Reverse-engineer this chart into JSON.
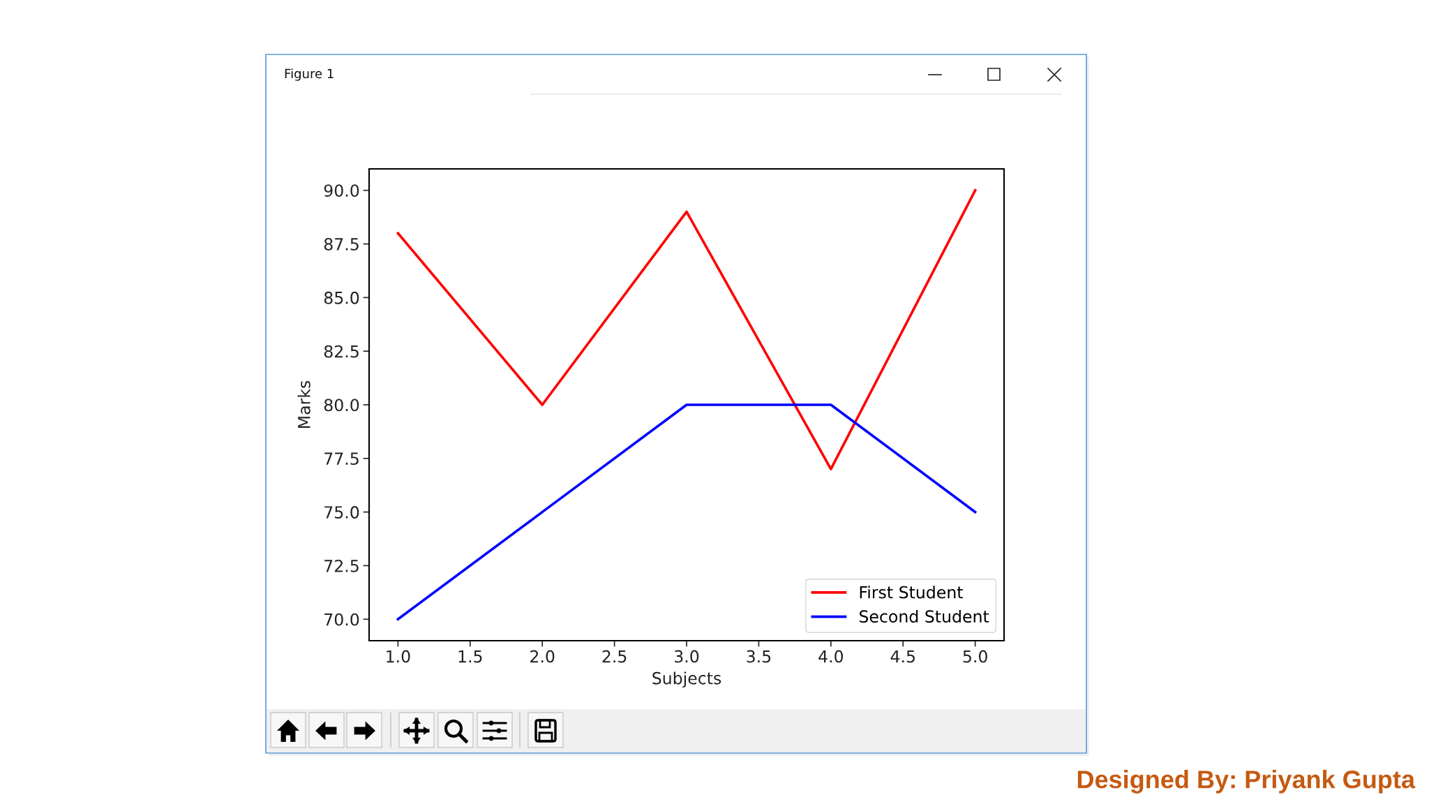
{
  "chart_data": {
    "type": "line",
    "xlabel": "Subjects",
    "ylabel": "Marks",
    "x": [
      1,
      2,
      3,
      4,
      5
    ],
    "series": [
      {
        "name": "First Student",
        "color": "#ff0000",
        "values": [
          88,
          80,
          89,
          77,
          90
        ]
      },
      {
        "name": "Second Student",
        "color": "#0000ff",
        "values": [
          70,
          75,
          80,
          80,
          75
        ]
      }
    ],
    "xlim": [
      0.8,
      5.2
    ],
    "xticks": [
      {
        "value": 1,
        "label": "1.0"
      },
      {
        "value": 1.5,
        "label": "1.5"
      },
      {
        "value": 2,
        "label": "2.0"
      },
      {
        "value": 2.5,
        "label": "2.5"
      },
      {
        "value": 3,
        "label": "3.0"
      },
      {
        "value": 3.5,
        "label": "3.5"
      },
      {
        "value": 4,
        "label": "4.0"
      },
      {
        "value": 4.5,
        "label": "4.5"
      },
      {
        "value": 5,
        "label": "5.0"
      }
    ],
    "ylim": [
      69,
      91
    ],
    "yticks": [
      {
        "value": 70,
        "label": "70.0"
      },
      {
        "value": 72.5,
        "label": "72.5"
      },
      {
        "value": 75,
        "label": "75.0"
      },
      {
        "value": 77.5,
        "label": "77.5"
      },
      {
        "value": 80,
        "label": "80.0"
      },
      {
        "value": 82.5,
        "label": "82.5"
      },
      {
        "value": 85,
        "label": "85.0"
      },
      {
        "value": 87.5,
        "label": "87.5"
      },
      {
        "value": 90,
        "label": "90.0"
      }
    ],
    "grid": false,
    "legend": "bottom right",
    "marker": "none",
    "line_style": "solid",
    "annotations": [
      "Figure 1",
      "Designed By: Priyank Gupta"
    ]
  }
}
